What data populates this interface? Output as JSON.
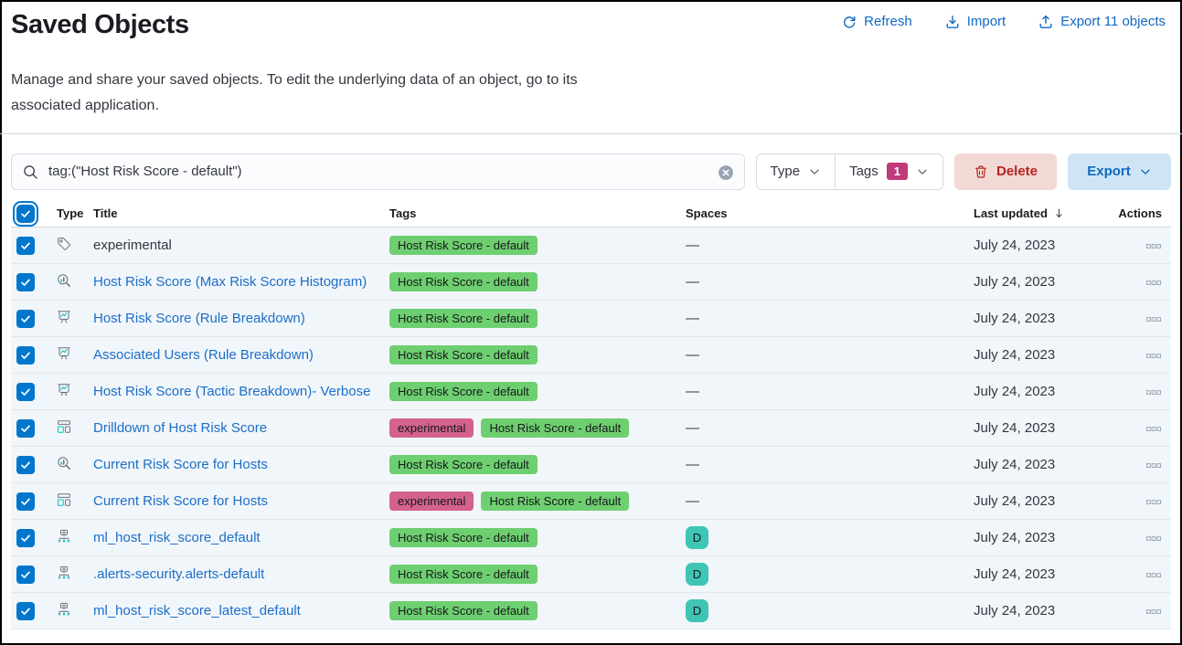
{
  "page": {
    "title": "Saved Objects",
    "description": "Manage and share your saved objects. To edit the underlying data of an object, go to its associated application."
  },
  "header_actions": {
    "refresh": "Refresh",
    "import": "Import",
    "export": "Export 11 objects"
  },
  "toolbar": {
    "search_value": "tag:(\"Host Risk Score - default\")",
    "type_filter_label": "Type",
    "tags_filter_label": "Tags",
    "tags_filter_count": "1",
    "delete_label": "Delete",
    "export_label": "Export"
  },
  "table": {
    "columns": [
      {
        "label": "Type"
      },
      {
        "label": "Title"
      },
      {
        "label": "Tags"
      },
      {
        "label": "Spaces"
      },
      {
        "label": "Last updated",
        "sorted": "desc"
      },
      {
        "label": "Actions"
      }
    ],
    "select_all_checked": true,
    "dash": "—",
    "rows": [
      {
        "type": "tag",
        "title": "experimental",
        "is_link": false,
        "tags": [
          "Host Risk Score - default"
        ],
        "space": null,
        "updated": "July 24, 2023",
        "checked": true
      },
      {
        "type": "lens",
        "title": "Host Risk Score (Max Risk Score Histogram)",
        "is_link": true,
        "tags": [
          "Host Risk Score - default"
        ],
        "space": null,
        "updated": "July 24, 2023",
        "checked": true
      },
      {
        "type": "visualization",
        "title": "Host Risk Score (Rule Breakdown)",
        "is_link": true,
        "tags": [
          "Host Risk Score - default"
        ],
        "space": null,
        "updated": "July 24, 2023",
        "checked": true
      },
      {
        "type": "visualization",
        "title": "Associated Users (Rule Breakdown)",
        "is_link": true,
        "tags": [
          "Host Risk Score - default"
        ],
        "space": null,
        "updated": "July 24, 2023",
        "checked": true
      },
      {
        "type": "visualization",
        "title": "Host Risk Score (Tactic Breakdown)- Verbose",
        "is_link": true,
        "tags": [
          "Host Risk Score - default"
        ],
        "space": null,
        "updated": "July 24, 2023",
        "checked": true
      },
      {
        "type": "dashboard",
        "title": "Drilldown of Host Risk Score",
        "is_link": true,
        "tags": [
          "experimental",
          "Host Risk Score - default"
        ],
        "space": null,
        "updated": "July 24, 2023",
        "checked": true
      },
      {
        "type": "lens",
        "title": "Current Risk Score for Hosts",
        "is_link": true,
        "tags": [
          "Host Risk Score - default"
        ],
        "space": null,
        "updated": "July 24, 2023",
        "checked": true
      },
      {
        "type": "dashboard",
        "title": "Current Risk Score for Hosts",
        "is_link": true,
        "tags": [
          "experimental",
          "Host Risk Score - default"
        ],
        "space": null,
        "updated": "July 24, 2023",
        "checked": true
      },
      {
        "type": "index-pattern",
        "title": "ml_host_risk_score_default",
        "is_link": true,
        "tags": [
          "Host Risk Score - default"
        ],
        "space": "D",
        "updated": "July 24, 2023",
        "checked": true
      },
      {
        "type": "index-pattern",
        "title": ".alerts-security.alerts-default",
        "is_link": true,
        "tags": [
          "Host Risk Score - default"
        ],
        "space": "D",
        "updated": "July 24, 2023",
        "checked": true
      },
      {
        "type": "index-pattern",
        "title": "ml_host_risk_score_latest_default",
        "is_link": true,
        "tags": [
          "Host Risk Score - default"
        ],
        "space": "D",
        "updated": "July 24, 2023",
        "checked": true
      }
    ]
  },
  "tag_colors": {
    "experimental": "#d4628c",
    "Host Risk Score - default": "#6ecf70"
  },
  "colors": {
    "primary_blue": "#1268c3",
    "checkbox_blue": "#0077cc",
    "tags_count_badge": "#c13a7a",
    "space_avatar_teal": "#3fc5b3",
    "delete_text": "#b4251d",
    "delete_bg": "#f3d9d6",
    "export_bg": "#cfe5f6",
    "selected_row_bg": "#f1f6fa",
    "icon_accent_teal": "#00bfb3",
    "icon_gray": "#69707d"
  }
}
